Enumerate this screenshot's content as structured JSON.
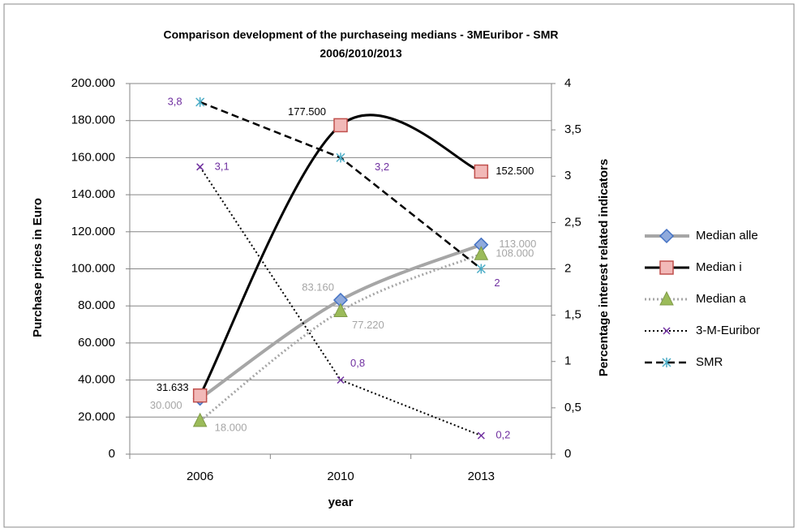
{
  "chart_data": {
    "type": "line",
    "title": "Comparison  development of the purchaseing medians  - 3MEuribor -  SMR",
    "subtitle": "2006/2010/2013",
    "x_label": "year",
    "y_label": "Purchase prices in Euro",
    "y2_label": "Percentage interest related indicators",
    "categories": [
      "2006",
      "2010",
      "2013"
    ],
    "ylim": [
      0,
      200000
    ],
    "yticks": [
      0,
      {
        "value": 20000,
        "label": "20.000"
      },
      {
        "value": 40000,
        "label": "40.000"
      },
      {
        "value": 60000,
        "label": "60.000"
      },
      {
        "value": 80000,
        "label": "80.000"
      },
      {
        "value": 100000,
        "label": "100.000"
      },
      {
        "value": 120000,
        "label": "120.000"
      },
      {
        "value": 140000,
        "label": "140.000"
      },
      {
        "value": 160000,
        "label": "160.000"
      },
      {
        "value": 180000,
        "label": "180.000"
      },
      {
        "value": 200000,
        "label": "200.000"
      }
    ],
    "y2lim": [
      0,
      4
    ],
    "y2ticks": [
      0,
      {
        "value": 0.5,
        "label": "0,5"
      },
      1,
      {
        "value": 1.5,
        "label": "1,5"
      },
      2,
      {
        "value": 2.5,
        "label": "2,5"
      },
      3,
      {
        "value": 3.5,
        "label": "3,5"
      },
      4
    ],
    "grid": true,
    "legend": "right",
    "series": [
      {
        "name": "Median alle",
        "color": "#a6a6a6",
        "marker": "diamond",
        "marker_color": "#8faadc",
        "line_style": "solid",
        "smooth": true,
        "label_color": "#a6a6a6",
        "values": [
          30000,
          83160,
          113000
        ],
        "value_labels": [
          "30.000",
          "83.160",
          "113.000"
        ]
      },
      {
        "name": "Median i",
        "color": "#000000",
        "marker": "square",
        "marker_color": "#f2b9b8",
        "line_style": "solid",
        "smooth": true,
        "label_color": "#000000",
        "values": [
          31633,
          177500,
          152500
        ],
        "value_labels": [
          "31.633",
          "177.500",
          "152.500"
        ]
      },
      {
        "name": "Median a",
        "color": "#a6a6a6",
        "marker": "triangle",
        "marker_color": "#9bbb59",
        "line_style": "dotted",
        "smooth": true,
        "label_color": "#a6a6a6",
        "values": [
          18000,
          77220,
          108000
        ],
        "value_labels": [
          "18.000",
          "77.220",
          "108.000"
        ]
      },
      {
        "name": "3-M-Euribor",
        "color": "#000000",
        "marker": "x",
        "marker_color": "#7030a0",
        "line_style": "dotted",
        "smooth": false,
        "axis": "y2",
        "label_color": "#7030a0",
        "values": [
          3.1,
          0.8,
          0.2
        ],
        "value_labels": [
          "3,1",
          "0,8",
          "0,2"
        ]
      },
      {
        "name": "SMR",
        "color": "#000000",
        "marker": "star",
        "marker_color": "#4bacc6",
        "line_style": "dashed",
        "smooth": false,
        "axis": "y2",
        "label_color": "#7030a0",
        "values": [
          3.8,
          3.2,
          2
        ],
        "value_labels": [
          "3,8",
          "3,2",
          "2"
        ]
      }
    ]
  }
}
